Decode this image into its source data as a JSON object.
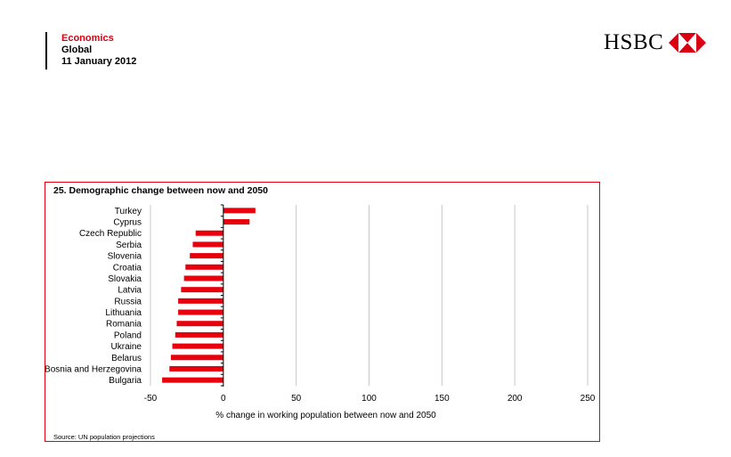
{
  "header": {
    "department": "Economics",
    "region": "Global",
    "date": "11 January 2012"
  },
  "logo": {
    "text": "HSBC",
    "icon": "hsbc-hexagon-icon",
    "color": "#db0011"
  },
  "chart_data": {
    "type": "bar",
    "orientation": "horizontal",
    "title": "25. Demographic change between now and 2050",
    "xlabel": "% change in working population between now and 2050",
    "source": "Source: UN population projections",
    "xlim": [
      -50,
      250
    ],
    "xticks": [
      -50,
      0,
      50,
      100,
      150,
      200,
      250
    ],
    "grid": "vertical",
    "bar_color": "#e8000d",
    "categories": [
      "Turkey",
      "Cyprus",
      "Czech Republic",
      "Serbia",
      "Slovenia",
      "Croatia",
      "Slovakia",
      "Latvia",
      "Russia",
      "Lithuania",
      "Romania",
      "Poland",
      "Ukraine",
      "Belarus",
      "Bosnia and Herzegovina",
      "Bulgaria"
    ],
    "values": [
      22,
      18,
      -19,
      -21,
      -23,
      -26,
      -27,
      -29,
      -31,
      -31,
      -32,
      -33,
      -35,
      -36,
      -37,
      -42
    ]
  }
}
